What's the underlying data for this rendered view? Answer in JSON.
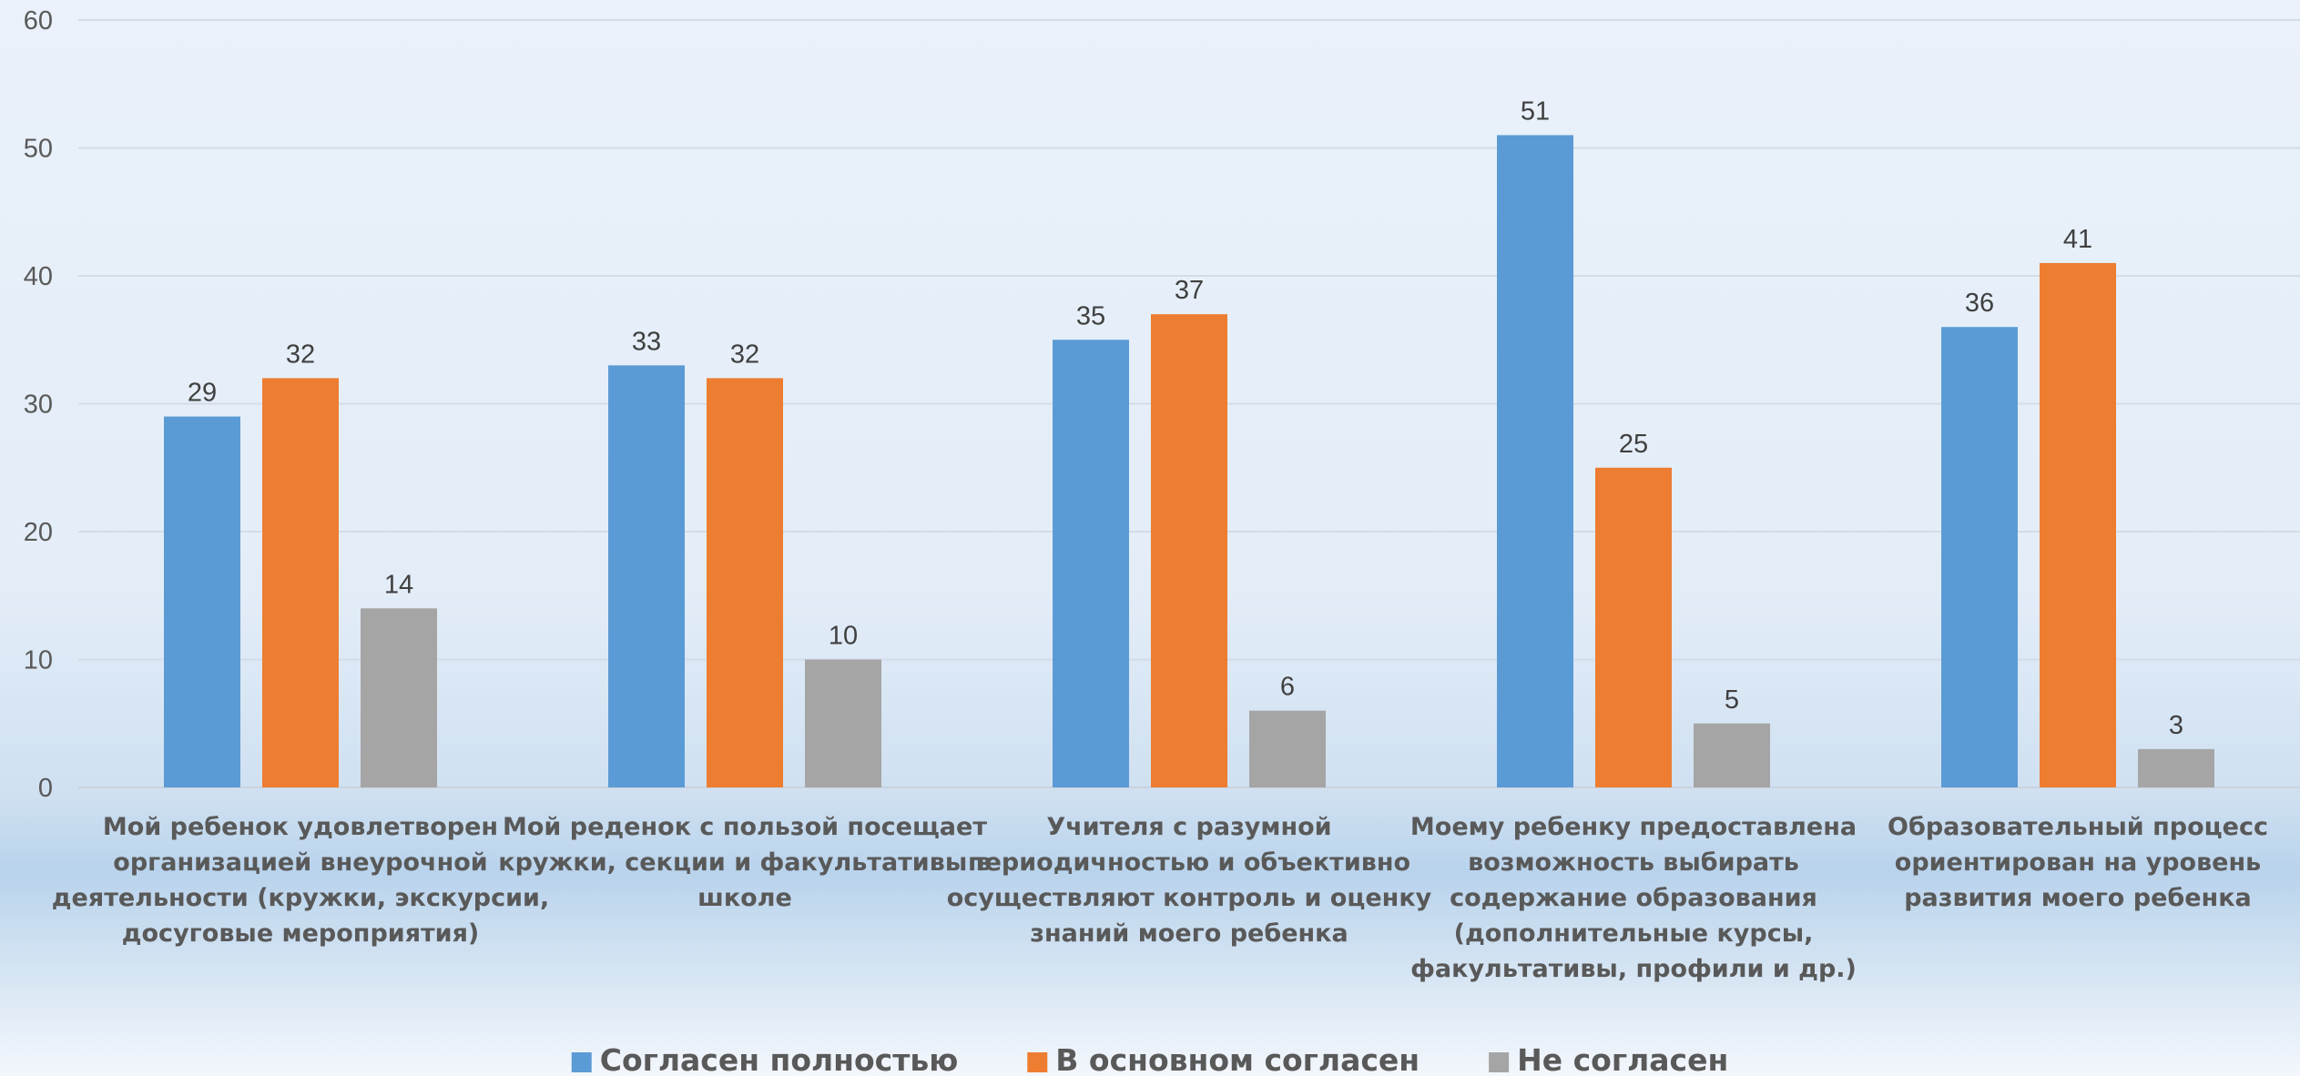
{
  "chart_data": {
    "type": "bar",
    "categories": [
      "Мой ребенок удовлетворен организацией внеурочной деятельности (кружки, экскурсии, досуговые мероприятия)",
      "Мой реденок с пользой посещает кружки, секции и факультативы в школе",
      "Учителя с разумной периодичностью и объективно осуществляют контроль и оценку знаний моего ребенка",
      "Моему ребенку предоставлена возможность выбирать содержание образования (дополнительные курсы, факультативы, профили и др.)",
      "Образовательный процесс ориентирован на уровень развития моего ребенка"
    ],
    "category_lines": [
      [
        "Мой ребенок удовлетворен",
        "организацией внеурочной",
        "деятельности (кружки, экскурсии,",
        "досуговые мероприятия)"
      ],
      [
        "Мой реденок с пользой посещает",
        "кружки, секции и факультативы в",
        "школе"
      ],
      [
        "Учителя с разумной",
        "периодичностью и объективно",
        "осуществляют контроль и оценку",
        "знаний моего ребенка"
      ],
      [
        "Моему ребенку предоставлена",
        "возможность выбирать",
        "содержание образования",
        "(дополнительные курсы,",
        "факультативы, профили и др.)"
      ],
      [
        "Образовательный процесс",
        "ориентирован на уровень",
        "развития моего ребенка"
      ]
    ],
    "series": [
      {
        "name": "Согласен полностью",
        "color": "#5b9bd5",
        "values": [
          29,
          33,
          35,
          51,
          36
        ]
      },
      {
        "name": "В основном согласен",
        "color": "#ed7d31",
        "values": [
          32,
          32,
          37,
          25,
          41
        ]
      },
      {
        "name": "Не согласен",
        "color": "#a5a5a5",
        "values": [
          14,
          10,
          6,
          5,
          3
        ]
      }
    ],
    "ylim": [
      0,
      60
    ],
    "yticks": [
      0,
      10,
      20,
      30,
      40,
      50,
      60
    ],
    "grid": true,
    "data_labels": true,
    "legend_position": "bottom"
  }
}
